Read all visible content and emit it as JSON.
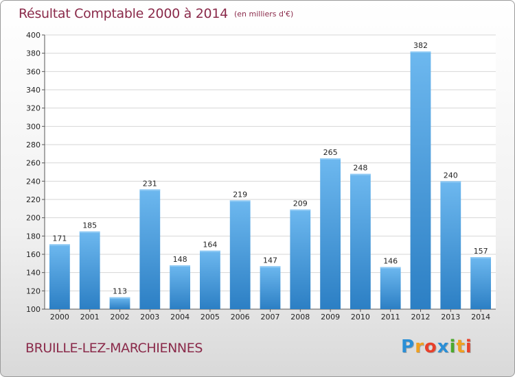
{
  "header": {
    "title": "Résultat Comptable 2000 à 2014",
    "subtitle": "(en milliers d'€)"
  },
  "footer": {
    "town": "BRUILLE-LEZ-MARCHIENNES",
    "logo_letters": [
      {
        "ch": "P",
        "color": "#2b8fd6"
      },
      {
        "ch": "r",
        "color": "#f0a020"
      },
      {
        "ch": "o",
        "color": "#e8402a"
      },
      {
        "ch": "x",
        "color": "#2b8fd6"
      },
      {
        "ch": "i",
        "color": "#4caa2c"
      },
      {
        "ch": "t",
        "color": "#f0a020"
      },
      {
        "ch": "i",
        "color": "#e8402a"
      }
    ]
  },
  "colors": {
    "bar_light": "#6db8ef",
    "bar_dark": "#2c7fc4",
    "grid": "#d6d6d6",
    "title": "#8a2a4a"
  },
  "chart_data": {
    "type": "bar",
    "title": "Résultat Comptable 2000 à 2014",
    "subtitle": "(en milliers d'€)",
    "categories": [
      "2000",
      "2001",
      "2002",
      "2003",
      "2004",
      "2005",
      "2006",
      "2007",
      "2008",
      "2009",
      "2010",
      "2011",
      "2012",
      "2013",
      "2014"
    ],
    "values": [
      171,
      185,
      113,
      231,
      148,
      164,
      219,
      147,
      209,
      265,
      248,
      146,
      382,
      240,
      157
    ],
    "ylim": [
      100,
      400
    ],
    "yticks": [
      100,
      120,
      140,
      160,
      180,
      200,
      220,
      240,
      260,
      280,
      300,
      320,
      340,
      360,
      380,
      400
    ],
    "grid": true,
    "xlabel": "",
    "ylabel": ""
  }
}
